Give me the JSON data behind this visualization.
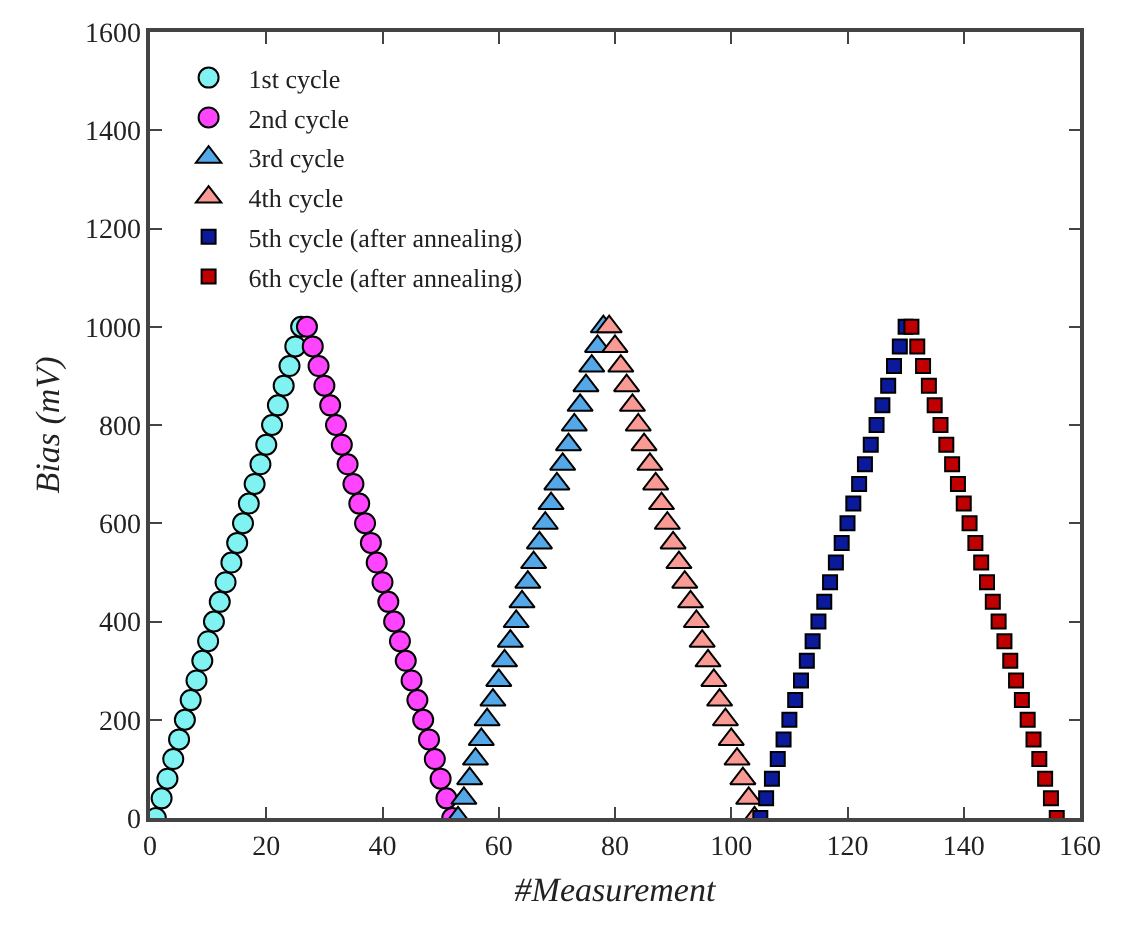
{
  "chart_data": {
    "type": "scatter",
    "xlabel": "#Measurement",
    "ylabel": "Bias (mV)",
    "xlim": [
      0,
      160
    ],
    "ylim": [
      0,
      1600
    ],
    "xticks": [
      0,
      20,
      40,
      60,
      80,
      100,
      120,
      140,
      160
    ],
    "yticks": [
      0,
      200,
      400,
      600,
      800,
      1000,
      1200,
      1400,
      1600
    ],
    "legend": "top left",
    "series": [
      {
        "name": "1st cycle",
        "color": "#80f2f2",
        "marker": "circle",
        "x": [
          1,
          2,
          3,
          4,
          5,
          6,
          7,
          8,
          9,
          10,
          11,
          12,
          13,
          14,
          15,
          16,
          17,
          18,
          19,
          20,
          21,
          22,
          23,
          24,
          25,
          26
        ],
        "values": [
          0,
          40,
          80,
          120,
          160,
          200,
          240,
          280,
          320,
          360,
          400,
          440,
          480,
          520,
          560,
          600,
          640,
          680,
          720,
          760,
          800,
          840,
          880,
          920,
          960,
          1000
        ]
      },
      {
        "name": "2nd cycle",
        "color": "#ff44ff",
        "marker": "circle",
        "x": [
          27,
          28,
          29,
          30,
          31,
          32,
          33,
          34,
          35,
          36,
          37,
          38,
          39,
          40,
          41,
          42,
          43,
          44,
          45,
          46,
          47,
          48,
          49,
          50,
          51,
          52
        ],
        "values": [
          1000,
          960,
          920,
          880,
          840,
          800,
          760,
          720,
          680,
          640,
          600,
          560,
          520,
          480,
          440,
          400,
          360,
          320,
          280,
          240,
          200,
          160,
          120,
          80,
          40,
          0
        ]
      },
      {
        "name": "3rd cycle",
        "color": "#55a8e8",
        "marker": "triangle",
        "x": [
          53,
          54,
          55,
          56,
          57,
          58,
          59,
          60,
          61,
          62,
          63,
          64,
          65,
          66,
          67,
          68,
          69,
          70,
          71,
          72,
          73,
          74,
          75,
          76,
          77,
          78
        ],
        "values": [
          0,
          40,
          80,
          120,
          160,
          200,
          240,
          280,
          320,
          360,
          400,
          440,
          480,
          520,
          560,
          600,
          640,
          680,
          720,
          760,
          800,
          840,
          880,
          920,
          960,
          1000
        ]
      },
      {
        "name": "4th cycle",
        "color": "#f99a95",
        "marker": "triangle",
        "x": [
          79,
          80,
          81,
          82,
          83,
          84,
          85,
          86,
          87,
          88,
          89,
          90,
          91,
          92,
          93,
          94,
          95,
          96,
          97,
          98,
          99,
          100,
          101,
          102,
          103,
          104
        ],
        "values": [
          1000,
          960,
          920,
          880,
          840,
          800,
          760,
          720,
          680,
          640,
          600,
          560,
          520,
          480,
          440,
          400,
          360,
          320,
          280,
          240,
          200,
          160,
          120,
          80,
          40,
          0
        ]
      },
      {
        "name": "5th cycle (after annealing)",
        "color": "#0a1a9a",
        "marker": "square",
        "x": [
          105,
          106,
          107,
          108,
          109,
          110,
          111,
          112,
          113,
          114,
          115,
          116,
          117,
          118,
          119,
          120,
          121,
          122,
          123,
          124,
          125,
          126,
          127,
          128,
          129,
          130
        ],
        "values": [
          0,
          40,
          80,
          120,
          160,
          200,
          240,
          280,
          320,
          360,
          400,
          440,
          480,
          520,
          560,
          600,
          640,
          680,
          720,
          760,
          800,
          840,
          880,
          920,
          960,
          1000
        ]
      },
      {
        "name": "6th cycle (after annealing)",
        "color": "#c00000",
        "marker": "square",
        "x": [
          131,
          132,
          133,
          134,
          135,
          136,
          137,
          138,
          139,
          140,
          141,
          142,
          143,
          144,
          145,
          146,
          147,
          148,
          149,
          150,
          151,
          152,
          153,
          154,
          155,
          156
        ],
        "values": [
          1000,
          960,
          920,
          880,
          840,
          800,
          760,
          720,
          680,
          640,
          600,
          560,
          520,
          480,
          440,
          400,
          360,
          320,
          280,
          240,
          200,
          160,
          120,
          80,
          40,
          0
        ]
      }
    ]
  }
}
